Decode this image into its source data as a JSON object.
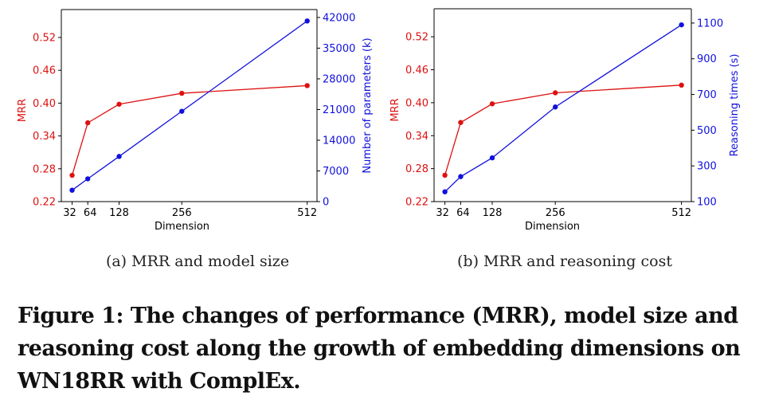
{
  "colors": {
    "mrr": "#dd1111",
    "secondary": "#1111dd",
    "axis": "#000000"
  },
  "chart_data": [
    {
      "type": "line",
      "subcaption": "(a)  MRR and model size",
      "xlabel": "Dimension",
      "x": [
        32,
        64,
        128,
        256,
        512
      ],
      "xticks": [
        32,
        64,
        128,
        256,
        512
      ],
      "xlim": [
        10,
        532
      ],
      "ylabel": "MRR",
      "ylim": [
        0.22,
        0.571
      ],
      "yticks": [
        0.22,
        0.28,
        0.34,
        0.4,
        0.46,
        0.52
      ],
      "ytick_labels": [
        "0.22",
        "0.28",
        "0.34",
        "0.40",
        "0.46",
        "0.52"
      ],
      "y2label": "Number of parameters (k)",
      "y2lim": [
        0,
        43800
      ],
      "y2ticks": [
        0,
        7000,
        14000,
        21000,
        28000,
        35000,
        42000
      ],
      "y2tick_labels": [
        "0",
        "7000",
        "14000",
        "21000",
        "28000",
        "35000",
        "42000"
      ],
      "series": [
        {
          "name": "MRR",
          "axis": "left",
          "values": [
            0.268,
            0.364,
            0.398,
            0.418,
            0.432
          ]
        },
        {
          "name": "Number of parameters (k)",
          "axis": "right",
          "values": [
            2600,
            5200,
            10300,
            20600,
            41200
          ]
        }
      ]
    },
    {
      "type": "line",
      "subcaption": "(b)  MRR and reasoning cost",
      "xlabel": "Dimension",
      "x": [
        32,
        64,
        128,
        256,
        512
      ],
      "xticks": [
        32,
        64,
        128,
        256,
        512
      ],
      "xlim": [
        10,
        532
      ],
      "ylabel": "MRR",
      "ylim": [
        0.22,
        0.571
      ],
      "yticks": [
        0.22,
        0.28,
        0.34,
        0.4,
        0.46,
        0.52
      ],
      "ytick_labels": [
        "0.22",
        "0.28",
        "0.34",
        "0.40",
        "0.46",
        "0.52"
      ],
      "y2label": "Reasoning times (s)",
      "y2lim": [
        100,
        1180
      ],
      "y2ticks": [
        100,
        300,
        500,
        700,
        900,
        1100
      ],
      "y2tick_labels": [
        "100",
        "300",
        "500",
        "700",
        "900",
        "1100"
      ],
      "series": [
        {
          "name": "MRR",
          "axis": "left",
          "values": [
            0.268,
            0.364,
            0.398,
            0.418,
            0.432
          ]
        },
        {
          "name": "Reasoning times (s)",
          "axis": "right",
          "values": [
            155,
            240,
            345,
            630,
            1090
          ]
        }
      ]
    }
  ],
  "caption": "Figure 1: The changes of performance (MRR), model size and reasoning cost along the growth of embedding dimensions on WN18RR with ComplEx."
}
